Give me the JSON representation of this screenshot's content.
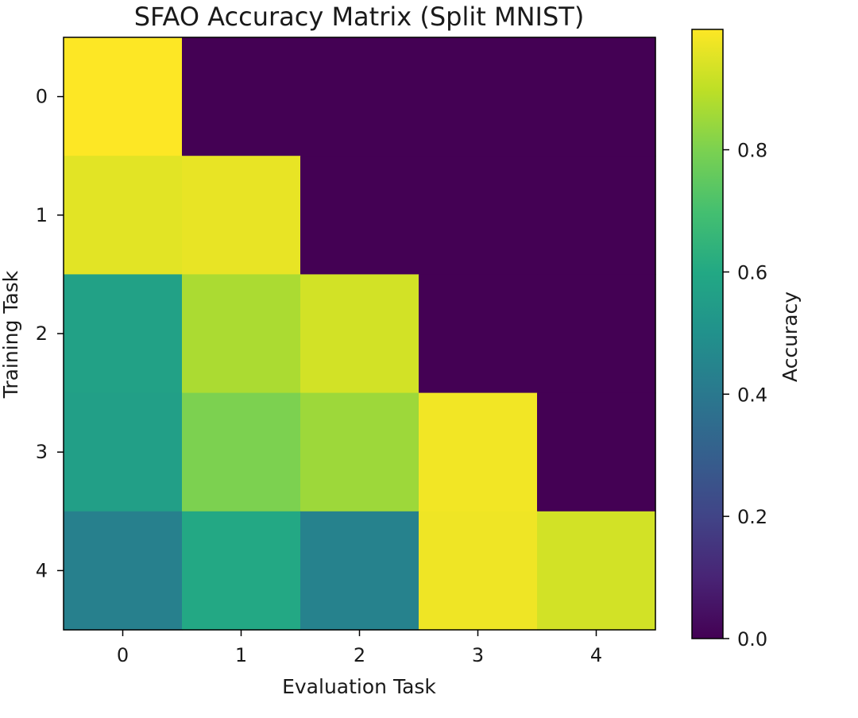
{
  "chart_data": {
    "type": "heatmap",
    "title": "SFAO Accuracy Matrix (Split MNIST)",
    "xlabel": "Evaluation Task",
    "ylabel": "Training Task",
    "x_categories": [
      "0",
      "1",
      "2",
      "3",
      "4"
    ],
    "y_categories": [
      "0",
      "1",
      "2",
      "3",
      "4"
    ],
    "values": [
      [
        0.997,
        0.0,
        0.0,
        0.0,
        0.0
      ],
      [
        0.955,
        0.965,
        0.0,
        0.0,
        0.0
      ],
      [
        0.57,
        0.87,
        0.93,
        0.0,
        0.0
      ],
      [
        0.56,
        0.8,
        0.85,
        0.98,
        0.0
      ],
      [
        0.43,
        0.6,
        0.44,
        0.975,
        0.93
      ]
    ],
    "colormap": "viridis",
    "colorbar": {
      "label": "Accuracy",
      "range": [
        0.0,
        0.997
      ],
      "ticks": [
        0.0,
        0.2,
        0.4,
        0.6,
        0.8
      ],
      "tick_labels": [
        "0.0",
        "0.2",
        "0.4",
        "0.6",
        "0.8"
      ]
    }
  }
}
